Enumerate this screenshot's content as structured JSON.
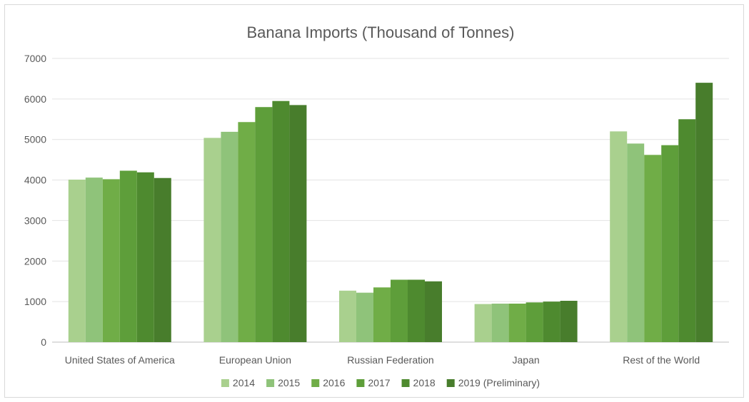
{
  "chart_data": {
    "type": "bar",
    "title": "Banana Imports (Thousand of Tonnes)",
    "xlabel": "",
    "ylabel": "",
    "ylim": [
      0,
      7000
    ],
    "yticks": [
      0,
      1000,
      2000,
      3000,
      4000,
      5000,
      6000,
      7000
    ],
    "grid": true,
    "legend_position": "bottom",
    "categories": [
      "United States of America",
      "European Union",
      "Russian Federation",
      "Japan",
      "Rest of the World"
    ],
    "series": [
      {
        "name": "2014",
        "color": "#a9d08e",
        "values": [
          4010,
          5040,
          1270,
          940,
          5200
        ]
      },
      {
        "name": "2015",
        "color": "#8fc37a",
        "values": [
          4060,
          5190,
          1220,
          950,
          4900
        ]
      },
      {
        "name": "2016",
        "color": "#70ad47",
        "values": [
          4020,
          5430,
          1350,
          950,
          4620
        ]
      },
      {
        "name": "2017",
        "color": "#5e9e3a",
        "values": [
          4230,
          5800,
          1540,
          980,
          4860
        ]
      },
      {
        "name": "2018",
        "color": "#4e8a2f",
        "values": [
          4190,
          5950,
          1540,
          1000,
          5500
        ]
      },
      {
        "name": "2019 (Preliminary)",
        "color": "#487d2c",
        "values": [
          4050,
          5850,
          1500,
          1020,
          6400
        ]
      }
    ]
  }
}
